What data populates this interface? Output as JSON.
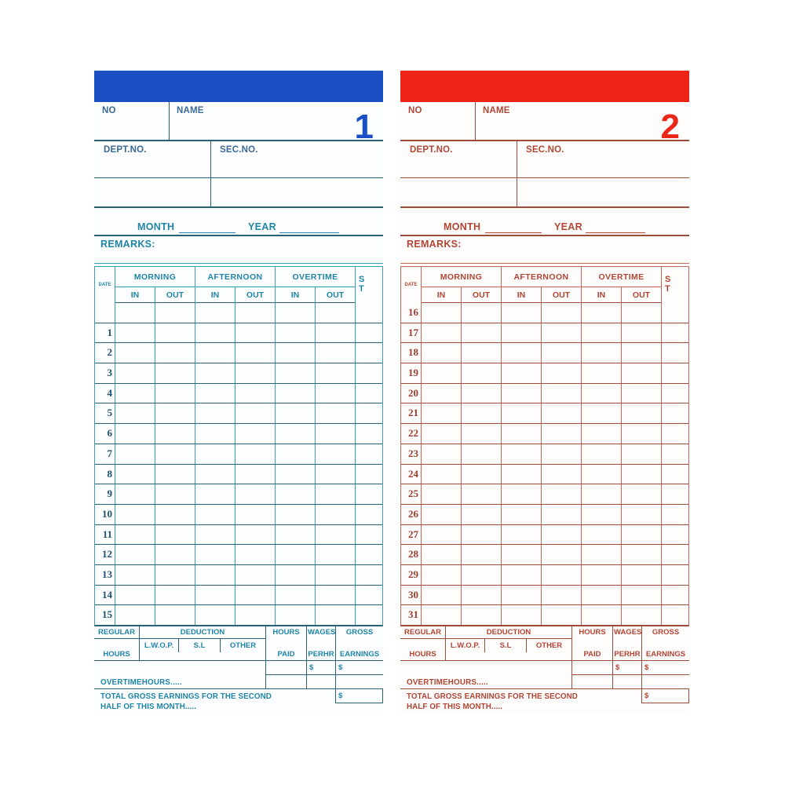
{
  "cards": [
    {
      "header": {
        "no_label": "NO",
        "name_label": "NAME",
        "card_number": "1",
        "dept_label": "DEPT.NO.",
        "sec_label": "SEC.NO."
      },
      "period": {
        "month_label": "MONTH",
        "year_label": "YEAR",
        "remarks_label": "REMARKS:"
      },
      "table": {
        "date_label": "DATE",
        "groups": [
          "MORNING",
          "AFTERNOON",
          "OVERTIME"
        ],
        "in_label": "IN",
        "out_label": "OUT",
        "st_top": "S",
        "st_bottom": "T",
        "rows": [
          "",
          "1",
          "2",
          "3",
          "4",
          "5",
          "6",
          "7",
          "8",
          "9",
          "10",
          "11",
          "12",
          "13",
          "14",
          "15"
        ]
      },
      "summary": {
        "regular_line1": "REGULAR",
        "regular_line2": "HOURS",
        "deduction_label": "DEDUCTION",
        "ded_col1": "L.W.O.P.",
        "ded_col2": "S.L",
        "ded_col3": "OTHER",
        "hours_line1": "HOURS",
        "hours_line2": "PAID",
        "wages_line1": "WAGES",
        "wages_line2": "PERHR",
        "gross_line1": "GROSS",
        "gross_line2": "EARNINGS",
        "dollar_wages": "$",
        "dollar_gross": "$",
        "dollar_total": "$",
        "overtime_label": "OVERTIMEHOURS.....",
        "total_line1": "TOTAL GROSS EARNINGS FOR THE SECOND",
        "total_line2": "HALF OF THIS MONTH....."
      },
      "colors": {
        "bar": "#1c4fc3",
        "bg": "#fdfeff",
        "head": "#3a6a95",
        "ink": "#1f85a8",
        "gv": "#35a0b6",
        "gh": "#2b6175",
        "digit": "#1c4fc3",
        "numink": "#1d5070"
      }
    },
    {
      "header": {
        "no_label": "NO",
        "name_label": "NAME",
        "card_number": "2",
        "dept_label": "DEPT.NO.",
        "sec_label": "SEC.NO."
      },
      "period": {
        "month_label": "MONTH",
        "year_label": "YEAR",
        "remarks_label": "REMARKS:"
      },
      "table": {
        "date_label": "DATE",
        "groups": [
          "MORNING",
          "AFTERNOON",
          "OVERTIME"
        ],
        "in_label": "IN",
        "out_label": "OUT",
        "st_top": "S",
        "st_bottom": "T",
        "rows": [
          "16",
          "17",
          "18",
          "19",
          "20",
          "21",
          "22",
          "23",
          "24",
          "25",
          "26",
          "27",
          "28",
          "29",
          "30",
          "31"
        ]
      },
      "summary": {
        "regular_line1": "REGULAR",
        "regular_line2": "HOURS",
        "deduction_label": "DEDUCTION",
        "ded_col1": "L.W.O.P.",
        "ded_col2": "S.L",
        "ded_col3": "OTHER",
        "hours_line1": "HOURS",
        "hours_line2": "PAID",
        "wages_line1": "WAGES",
        "wages_line2": "PERHR",
        "gross_line1": "GROSS",
        "gross_line2": "EARNINGS",
        "dollar_wages": "$",
        "dollar_gross": "$",
        "dollar_total": "$",
        "overtime_label": "OVERTIMEHOURS.....",
        "total_line1": "TOTAL GROSS EARNINGS FOR THE SECOND",
        "total_line2": "HALF OF THIS MONTH....."
      },
      "colors": {
        "bar": "#ee2516",
        "bg": "#fffdfc",
        "head": "#b04636",
        "ink": "#b24434",
        "gv": "#c4685a",
        "gh": "#9c4c3c",
        "digit": "#ea2618",
        "numink": "#9c3c2e"
      }
    }
  ]
}
